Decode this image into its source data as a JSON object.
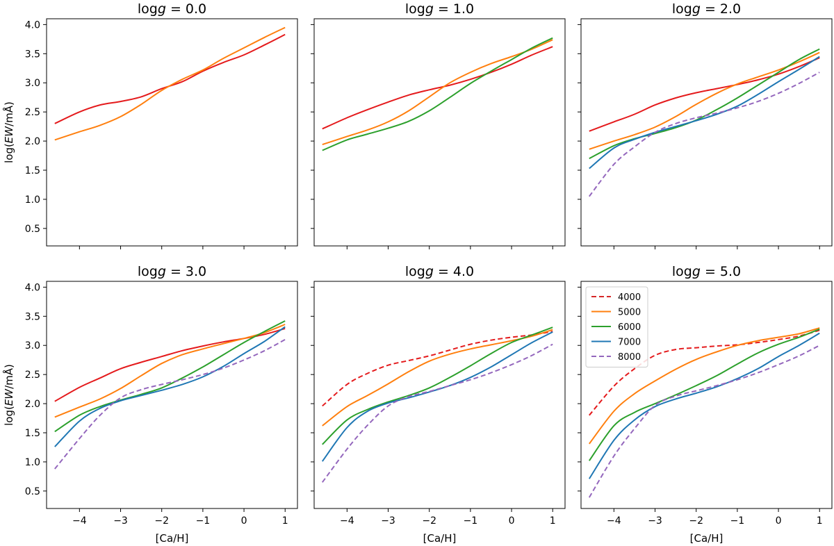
{
  "figure": {
    "x_label": "[Ca/H]",
    "y_label": "log(EW/mÅ)"
  },
  "legend": {
    "location": "upper-left",
    "panel": 5,
    "entries": [
      {
        "label": "4000",
        "color": "#d62728",
        "style": "dashed"
      },
      {
        "label": "5000",
        "color": "#ff7f0e",
        "style": "solid"
      },
      {
        "label": "6000",
        "color": "#2ca02c",
        "style": "solid"
      },
      {
        "label": "7000",
        "color": "#1f77b4",
        "style": "solid"
      },
      {
        "label": "8000",
        "color": "#9467bd",
        "style": "dashed"
      }
    ]
  },
  "chart_data": [
    {
      "type": "line",
      "title_prefix": "log",
      "title_var": "g",
      "title_value": " = 0.0",
      "xlim": [
        -4.8,
        1.3
      ],
      "ylim": [
        0.2,
        4.1
      ],
      "xticks": [
        -4,
        -3,
        -2,
        -1,
        0,
        1
      ],
      "xtick_labels": [
        "−4",
        "−3",
        "−2",
        "−1",
        "0",
        "1"
      ],
      "yticks": [
        0.5,
        1.0,
        1.5,
        2.0,
        2.5,
        3.0,
        3.5,
        4.0
      ],
      "ytick_labels": [
        "0.5",
        "1.0",
        "1.5",
        "2.0",
        "2.5",
        "3.0",
        "3.5",
        "4.0"
      ],
      "show_xticklabels": false,
      "show_yticklabels": true,
      "show_xlabel": false,
      "show_ylabel": true,
      "x": [
        -4.6,
        -4.0,
        -3.5,
        -3.0,
        -2.5,
        -2.0,
        -1.5,
        -1.0,
        -0.5,
        0.0,
        0.5,
        1.0
      ],
      "series": [
        {
          "name": "4000",
          "color": "#e41a1c",
          "dashed": false,
          "values": [
            2.3,
            2.5,
            2.62,
            2.68,
            2.76,
            2.9,
            3.02,
            3.2,
            3.35,
            3.48,
            3.65,
            3.83
          ]
        },
        {
          "name": "5000",
          "color": "#ff7f0e",
          "dashed": false,
          "values": [
            2.02,
            2.16,
            2.27,
            2.42,
            2.63,
            2.87,
            3.06,
            3.22,
            3.42,
            3.6,
            3.78,
            3.95
          ]
        }
      ]
    },
    {
      "type": "line",
      "title_prefix": "log",
      "title_var": "g",
      "title_value": " = 1.0",
      "xlim": [
        -4.8,
        1.3
      ],
      "ylim": [
        0.2,
        4.1
      ],
      "xticks": [
        -4,
        -3,
        -2,
        -1,
        0,
        1
      ],
      "xtick_labels": [
        "−4",
        "−3",
        "−2",
        "−1",
        "0",
        "1"
      ],
      "yticks": [
        0.5,
        1.0,
        1.5,
        2.0,
        2.5,
        3.0,
        3.5,
        4.0
      ],
      "ytick_labels": [
        "0.5",
        "1.0",
        "1.5",
        "2.0",
        "2.5",
        "3.0",
        "3.5",
        "4.0"
      ],
      "show_xticklabels": false,
      "show_yticklabels": false,
      "show_xlabel": false,
      "show_ylabel": false,
      "x": [
        -4.6,
        -4.0,
        -3.5,
        -3.0,
        -2.5,
        -2.0,
        -1.5,
        -1.0,
        -0.5,
        0.0,
        0.5,
        1.0
      ],
      "series": [
        {
          "name": "4000",
          "color": "#e41a1c",
          "dashed": false,
          "values": [
            2.21,
            2.4,
            2.54,
            2.67,
            2.79,
            2.88,
            2.96,
            3.06,
            3.18,
            3.32,
            3.48,
            3.62
          ]
        },
        {
          "name": "5000",
          "color": "#ff7f0e",
          "dashed": false,
          "values": [
            1.94,
            2.08,
            2.19,
            2.33,
            2.52,
            2.76,
            3.0,
            3.18,
            3.33,
            3.45,
            3.58,
            3.74
          ]
        },
        {
          "name": "6000",
          "color": "#2ca02c",
          "dashed": false,
          "values": [
            1.84,
            2.02,
            2.12,
            2.22,
            2.34,
            2.52,
            2.75,
            2.99,
            3.2,
            3.4,
            3.6,
            3.77
          ]
        }
      ]
    },
    {
      "type": "line",
      "title_prefix": "log",
      "title_var": "g",
      "title_value": " = 2.0",
      "xlim": [
        -4.8,
        1.3
      ],
      "ylim": [
        0.2,
        4.1
      ],
      "xticks": [
        -4,
        -3,
        -2,
        -1,
        0,
        1
      ],
      "xtick_labels": [
        "−4",
        "−3",
        "−2",
        "−1",
        "0",
        "1"
      ],
      "yticks": [
        0.5,
        1.0,
        1.5,
        2.0,
        2.5,
        3.0,
        3.5,
        4.0
      ],
      "ytick_labels": [
        "0.5",
        "1.0",
        "1.5",
        "2.0",
        "2.5",
        "3.0",
        "3.5",
        "4.0"
      ],
      "show_xticklabels": false,
      "show_yticklabels": false,
      "show_xlabel": false,
      "show_ylabel": false,
      "x": [
        -4.6,
        -4.0,
        -3.5,
        -3.0,
        -2.5,
        -2.0,
        -1.5,
        -1.0,
        -0.5,
        0.0,
        0.5,
        1.0
      ],
      "series": [
        {
          "name": "4000",
          "color": "#e41a1c",
          "dashed": false,
          "values": [
            2.17,
            2.33,
            2.46,
            2.62,
            2.74,
            2.83,
            2.9,
            2.97,
            3.05,
            3.15,
            3.28,
            3.43
          ]
        },
        {
          "name": "5000",
          "color": "#ff7f0e",
          "dashed": false,
          "values": [
            1.86,
            2.0,
            2.11,
            2.24,
            2.42,
            2.63,
            2.82,
            2.98,
            3.1,
            3.22,
            3.36,
            3.52
          ]
        },
        {
          "name": "6000",
          "color": "#2ca02c",
          "dashed": false,
          "values": [
            1.7,
            1.92,
            2.04,
            2.13,
            2.23,
            2.36,
            2.54,
            2.74,
            2.96,
            3.18,
            3.4,
            3.58
          ]
        },
        {
          "name": "7000",
          "color": "#1f77b4",
          "dashed": false,
          "values": [
            1.53,
            1.88,
            2.03,
            2.15,
            2.25,
            2.35,
            2.46,
            2.6,
            2.8,
            3.02,
            3.23,
            3.45
          ]
        },
        {
          "name": "8000",
          "color": "#9467bd",
          "dashed": true,
          "values": [
            1.05,
            1.6,
            1.9,
            2.15,
            2.3,
            2.4,
            2.48,
            2.57,
            2.68,
            2.82,
            2.99,
            3.18
          ]
        }
      ]
    },
    {
      "type": "line",
      "title_prefix": "log",
      "title_var": "g",
      "title_value": " = 3.0",
      "xlim": [
        -4.8,
        1.3
      ],
      "ylim": [
        0.2,
        4.1
      ],
      "xticks": [
        -4,
        -3,
        -2,
        -1,
        0,
        1
      ],
      "xtick_labels": [
        "−4",
        "−3",
        "−2",
        "−1",
        "0",
        "1"
      ],
      "yticks": [
        0.5,
        1.0,
        1.5,
        2.0,
        2.5,
        3.0,
        3.5,
        4.0
      ],
      "ytick_labels": [
        "0.5",
        "1.0",
        "1.5",
        "2.0",
        "2.5",
        "3.0",
        "3.5",
        "4.0"
      ],
      "show_xticklabels": true,
      "show_yticklabels": true,
      "show_xlabel": true,
      "show_ylabel": true,
      "x": [
        -4.6,
        -4.0,
        -3.5,
        -3.0,
        -2.5,
        -2.0,
        -1.5,
        -1.0,
        -0.5,
        0.0,
        0.5,
        1.0
      ],
      "series": [
        {
          "name": "4000",
          "color": "#e41a1c",
          "dashed": false,
          "values": [
            2.04,
            2.28,
            2.44,
            2.6,
            2.71,
            2.81,
            2.91,
            2.99,
            3.06,
            3.12,
            3.19,
            3.29
          ]
        },
        {
          "name": "5000",
          "color": "#ff7f0e",
          "dashed": false,
          "values": [
            1.77,
            1.94,
            2.08,
            2.26,
            2.48,
            2.69,
            2.84,
            2.94,
            3.03,
            3.12,
            3.22,
            3.36
          ]
        },
        {
          "name": "6000",
          "color": "#2ca02c",
          "dashed": false,
          "values": [
            1.52,
            1.8,
            1.95,
            2.06,
            2.16,
            2.27,
            2.44,
            2.63,
            2.84,
            3.05,
            3.24,
            3.42
          ]
        },
        {
          "name": "7000",
          "color": "#1f77b4",
          "dashed": false,
          "values": [
            1.26,
            1.7,
            1.92,
            2.05,
            2.14,
            2.23,
            2.33,
            2.46,
            2.64,
            2.86,
            3.07,
            3.32
          ]
        },
        {
          "name": "8000",
          "color": "#9467bd",
          "dashed": true,
          "values": [
            0.88,
            1.4,
            1.8,
            2.1,
            2.24,
            2.33,
            2.41,
            2.5,
            2.61,
            2.75,
            2.91,
            3.1
          ]
        }
      ]
    },
    {
      "type": "line",
      "title_prefix": "log",
      "title_var": "g",
      "title_value": " = 4.0",
      "xlim": [
        -4.8,
        1.3
      ],
      "ylim": [
        0.2,
        4.1
      ],
      "xticks": [
        -4,
        -3,
        -2,
        -1,
        0,
        1
      ],
      "xtick_labels": [
        "−4",
        "−3",
        "−2",
        "−1",
        "0",
        "1"
      ],
      "yticks": [
        0.5,
        1.0,
        1.5,
        2.0,
        2.5,
        3.0,
        3.5,
        4.0
      ],
      "ytick_labels": [
        "0.5",
        "1.0",
        "1.5",
        "2.0",
        "2.5",
        "3.0",
        "3.5",
        "4.0"
      ],
      "show_xticklabels": true,
      "show_yticklabels": false,
      "show_xlabel": true,
      "show_ylabel": false,
      "x": [
        -4.6,
        -4.0,
        -3.5,
        -3.0,
        -2.5,
        -2.0,
        -1.5,
        -1.0,
        -0.5,
        0.0,
        0.5,
        1.0
      ],
      "series": [
        {
          "name": "4000",
          "color": "#e41a1c",
          "dashed": true,
          "values": [
            1.96,
            2.33,
            2.52,
            2.66,
            2.74,
            2.82,
            2.92,
            3.02,
            3.09,
            3.14,
            3.18,
            3.24
          ]
        },
        {
          "name": "5000",
          "color": "#ff7f0e",
          "dashed": false,
          "values": [
            1.62,
            1.95,
            2.14,
            2.34,
            2.55,
            2.73,
            2.85,
            2.94,
            3.01,
            3.08,
            3.16,
            3.27
          ]
        },
        {
          "name": "6000",
          "color": "#2ca02c",
          "dashed": false,
          "values": [
            1.3,
            1.72,
            1.9,
            2.03,
            2.14,
            2.27,
            2.45,
            2.65,
            2.86,
            3.05,
            3.18,
            3.31
          ]
        },
        {
          "name": "7000",
          "color": "#1f77b4",
          "dashed": false,
          "values": [
            1.01,
            1.59,
            1.87,
            2.01,
            2.1,
            2.2,
            2.31,
            2.45,
            2.63,
            2.84,
            3.05,
            3.23
          ]
        },
        {
          "name": "8000",
          "color": "#9467bd",
          "dashed": true,
          "values": [
            0.65,
            1.22,
            1.63,
            1.96,
            2.12,
            2.21,
            2.31,
            2.41,
            2.53,
            2.67,
            2.83,
            3.02
          ]
        }
      ]
    },
    {
      "type": "line",
      "title_prefix": "log",
      "title_var": "g",
      "title_value": " = 5.0",
      "xlim": [
        -4.8,
        1.3
      ],
      "ylim": [
        0.2,
        4.1
      ],
      "xticks": [
        -4,
        -3,
        -2,
        -1,
        0,
        1
      ],
      "xtick_labels": [
        "−4",
        "−3",
        "−2",
        "−1",
        "0",
        "1"
      ],
      "yticks": [
        0.5,
        1.0,
        1.5,
        2.0,
        2.5,
        3.0,
        3.5,
        4.0
      ],
      "ytick_labels": [
        "0.5",
        "1.0",
        "1.5",
        "2.0",
        "2.5",
        "3.0",
        "3.5",
        "4.0"
      ],
      "show_xticklabels": true,
      "show_yticklabels": false,
      "show_xlabel": true,
      "show_ylabel": false,
      "x": [
        -4.6,
        -4.0,
        -3.5,
        -3.0,
        -2.5,
        -2.0,
        -1.5,
        -1.0,
        -0.5,
        0.0,
        0.5,
        1.0
      ],
      "series": [
        {
          "name": "4000",
          "color": "#e41a1c",
          "dashed": true,
          "values": [
            1.8,
            2.3,
            2.6,
            2.83,
            2.93,
            2.96,
            2.99,
            3.01,
            3.05,
            3.1,
            3.16,
            3.26
          ]
        },
        {
          "name": "5000",
          "color": "#ff7f0e",
          "dashed": false,
          "values": [
            1.31,
            1.87,
            2.17,
            2.39,
            2.59,
            2.76,
            2.89,
            3.0,
            3.08,
            3.14,
            3.2,
            3.3
          ]
        },
        {
          "name": "6000",
          "color": "#2ca02c",
          "dashed": false,
          "values": [
            1.02,
            1.62,
            1.85,
            2.0,
            2.15,
            2.31,
            2.48,
            2.68,
            2.87,
            3.02,
            3.14,
            3.28
          ]
        },
        {
          "name": "7000",
          "color": "#1f77b4",
          "dashed": false,
          "values": [
            0.71,
            1.37,
            1.72,
            1.95,
            2.08,
            2.18,
            2.29,
            2.43,
            2.6,
            2.81,
            3.0,
            3.21
          ]
        },
        {
          "name": "8000",
          "color": "#9467bd",
          "dashed": true,
          "values": [
            0.39,
            1.1,
            1.57,
            1.97,
            2.13,
            2.22,
            2.31,
            2.41,
            2.53,
            2.67,
            2.82,
            3.0
          ]
        }
      ]
    }
  ]
}
